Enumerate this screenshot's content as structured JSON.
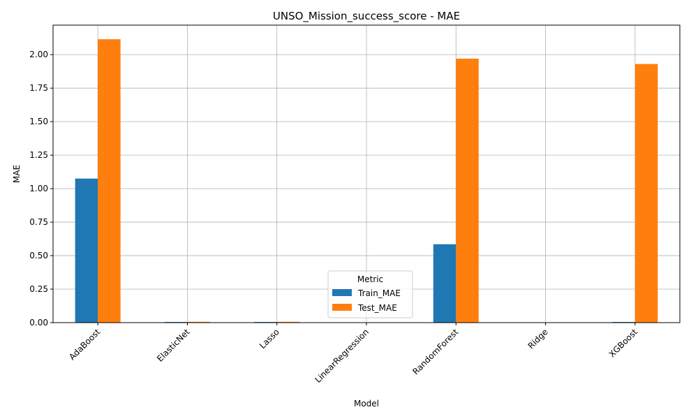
{
  "chart_data": {
    "type": "bar",
    "title": "UNSO_Mission_success_score - MAE",
    "xlabel": "Model",
    "ylabel": "MAE",
    "categories": [
      "AdaBoost",
      "ElasticNet",
      "Lasso",
      "LinearRegression",
      "RandomForest",
      "Ridge",
      "XGBoost"
    ],
    "series": [
      {
        "name": "Train_MAE",
        "color": "#1f77b4",
        "values": [
          1.075,
          0.005,
          0.005,
          0.0005,
          0.585,
          0.0005,
          0.005
        ]
      },
      {
        "name": "Test_MAE",
        "color": "#ff7f0e",
        "values": [
          2.115,
          0.006,
          0.006,
          0.0005,
          1.97,
          0.0005,
          1.93
        ]
      }
    ],
    "ylim": [
      0,
      2.22
    ],
    "yticks": [
      "0.00",
      "0.25",
      "0.50",
      "0.75",
      "1.00",
      "1.25",
      "1.50",
      "1.75",
      "2.00"
    ],
    "grid": true,
    "legend": {
      "title": "Metric",
      "placement": "lower center"
    }
  }
}
